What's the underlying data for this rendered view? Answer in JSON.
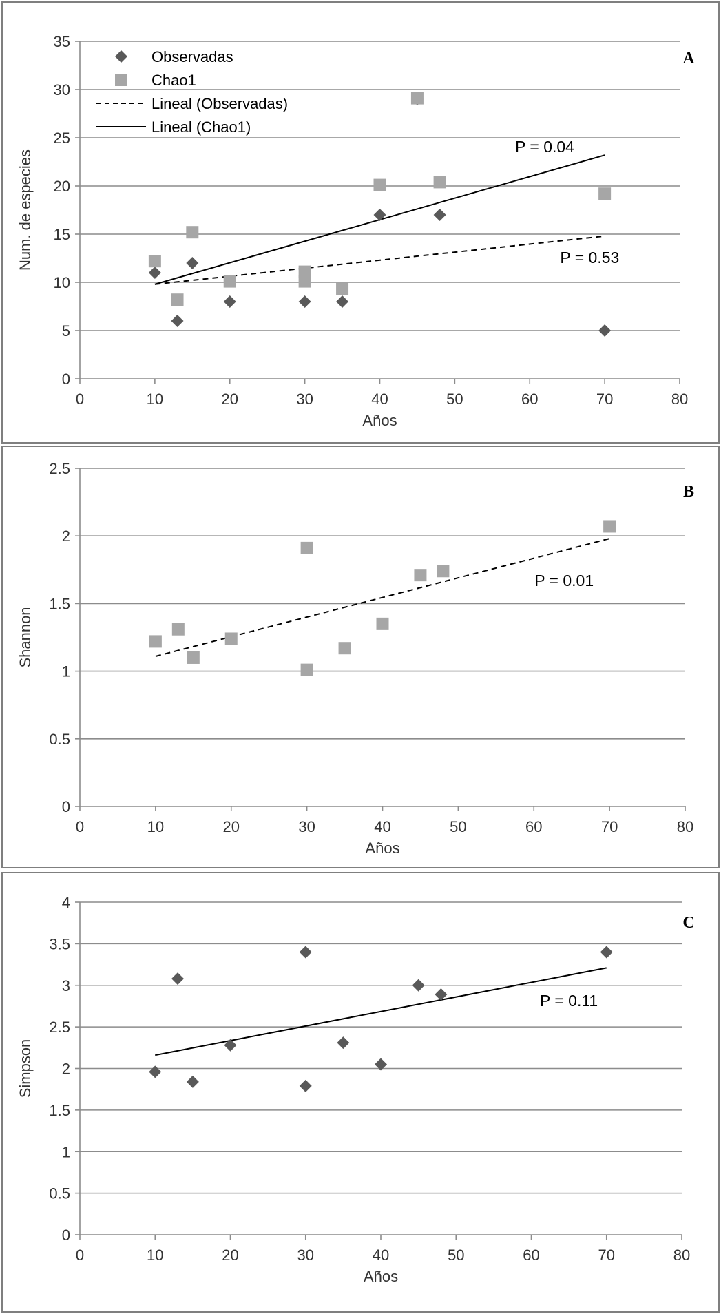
{
  "chart_data": [
    {
      "type": "scatter",
      "panel_label": "A",
      "xlabel": "Años",
      "ylabel": "Num. de especies",
      "xlim": [
        0,
        80
      ],
      "ylim": [
        0,
        35
      ],
      "xticks": [
        0,
        10,
        20,
        30,
        40,
        50,
        60,
        70,
        80
      ],
      "yticks": [
        0,
        5,
        10,
        15,
        20,
        25,
        30,
        35
      ],
      "legend_position": "top-left",
      "legend": [
        {
          "label": "Observadas",
          "marker": "diamond",
          "color": "#595959"
        },
        {
          "label": "Chao1",
          "marker": "square",
          "color": "#a6a6a6"
        },
        {
          "label": "Lineal (Observadas)",
          "line": "dashed",
          "color": "#000000"
        },
        {
          "label": "Lineal (Chao1)",
          "line": "solid",
          "color": "#000000"
        }
      ],
      "series": [
        {
          "name": "Observadas",
          "marker": "diamond",
          "color": "#595959",
          "points": [
            [
              10,
              11
            ],
            [
              13,
              6
            ],
            [
              15,
              12
            ],
            [
              20,
              8
            ],
            [
              30,
              8
            ],
            [
              35,
              8
            ],
            [
              40,
              17
            ],
            [
              45,
              29
            ],
            [
              48,
              17
            ],
            [
              70,
              5
            ]
          ]
        },
        {
          "name": "Chao1",
          "marker": "square",
          "color": "#a6a6a6",
          "points": [
            [
              10,
              12.2
            ],
            [
              13,
              8.2
            ],
            [
              15,
              15.2
            ],
            [
              20,
              10.1
            ],
            [
              30,
              11.1
            ],
            [
              30,
              10.1
            ],
            [
              35,
              9.3
            ],
            [
              40,
              20.1
            ],
            [
              45,
              29.1
            ],
            [
              48,
              20.4
            ],
            [
              70,
              19.2
            ]
          ]
        }
      ],
      "trendlines": [
        {
          "name": "Lineal (Observadas)",
          "style": "dashed",
          "color": "#000000",
          "from": [
            10,
            9.8
          ],
          "to": [
            70,
            14.8
          ]
        },
        {
          "name": "Lineal (Chao1)",
          "style": "solid",
          "color": "#000000",
          "from": [
            10,
            9.8
          ],
          "to": [
            70,
            23.2
          ]
        }
      ],
      "annotations": [
        {
          "text": "P = 0.04",
          "at": [
            62,
            23.5
          ]
        },
        {
          "text": "P = 0.53",
          "at": [
            68,
            12.0
          ]
        }
      ],
      "grid": true
    },
    {
      "type": "scatter",
      "panel_label": "B",
      "xlabel": "Años",
      "ylabel": "Shannon",
      "xlim": [
        0,
        80
      ],
      "ylim": [
        0,
        2.5
      ],
      "xticks": [
        0,
        10,
        20,
        30,
        40,
        50,
        60,
        70,
        80
      ],
      "yticks": [
        0,
        0.5,
        1,
        1.5,
        2,
        2.5
      ],
      "series": [
        {
          "marker": "square",
          "color": "#a6a6a6",
          "points": [
            [
              10,
              1.22
            ],
            [
              13,
              1.31
            ],
            [
              15,
              1.1
            ],
            [
              20,
              1.24
            ],
            [
              30,
              1.91
            ],
            [
              30,
              1.01
            ],
            [
              35,
              1.17
            ],
            [
              40,
              1.35
            ],
            [
              45,
              1.71
            ],
            [
              48,
              1.74
            ],
            [
              70,
              2.07
            ]
          ]
        }
      ],
      "trendlines": [
        {
          "style": "dashed",
          "color": "#000000",
          "from": [
            10,
            1.11
          ],
          "to": [
            70,
            1.98
          ]
        }
      ],
      "annotations": [
        {
          "text": "P = 0.01",
          "at": [
            64,
            1.63
          ]
        }
      ],
      "grid": true
    },
    {
      "type": "scatter",
      "panel_label": "C",
      "xlabel": "Años",
      "ylabel": "Simpson",
      "xlim": [
        0,
        80
      ],
      "ylim": [
        0,
        4
      ],
      "xticks": [
        0,
        10,
        20,
        30,
        40,
        50,
        60,
        70,
        80
      ],
      "yticks": [
        0,
        0.5,
        1,
        1.5,
        2,
        2.5,
        3,
        3.5,
        4
      ],
      "series": [
        {
          "marker": "diamond",
          "color": "#595959",
          "points": [
            [
              10,
              1.96
            ],
            [
              13,
              3.08
            ],
            [
              15,
              1.84
            ],
            [
              20,
              2.28
            ],
            [
              30,
              3.4
            ],
            [
              30,
              1.79
            ],
            [
              35,
              2.31
            ],
            [
              40,
              2.05
            ],
            [
              45,
              3.0
            ],
            [
              48,
              2.89
            ],
            [
              70,
              3.4
            ]
          ]
        }
      ],
      "trendlines": [
        {
          "style": "solid",
          "color": "#000000",
          "from": [
            10,
            2.16
          ],
          "to": [
            70,
            3.21
          ]
        }
      ],
      "annotations": [
        {
          "text": "P = 0.11",
          "at": [
            65,
            2.75
          ]
        }
      ],
      "grid": true
    }
  ]
}
